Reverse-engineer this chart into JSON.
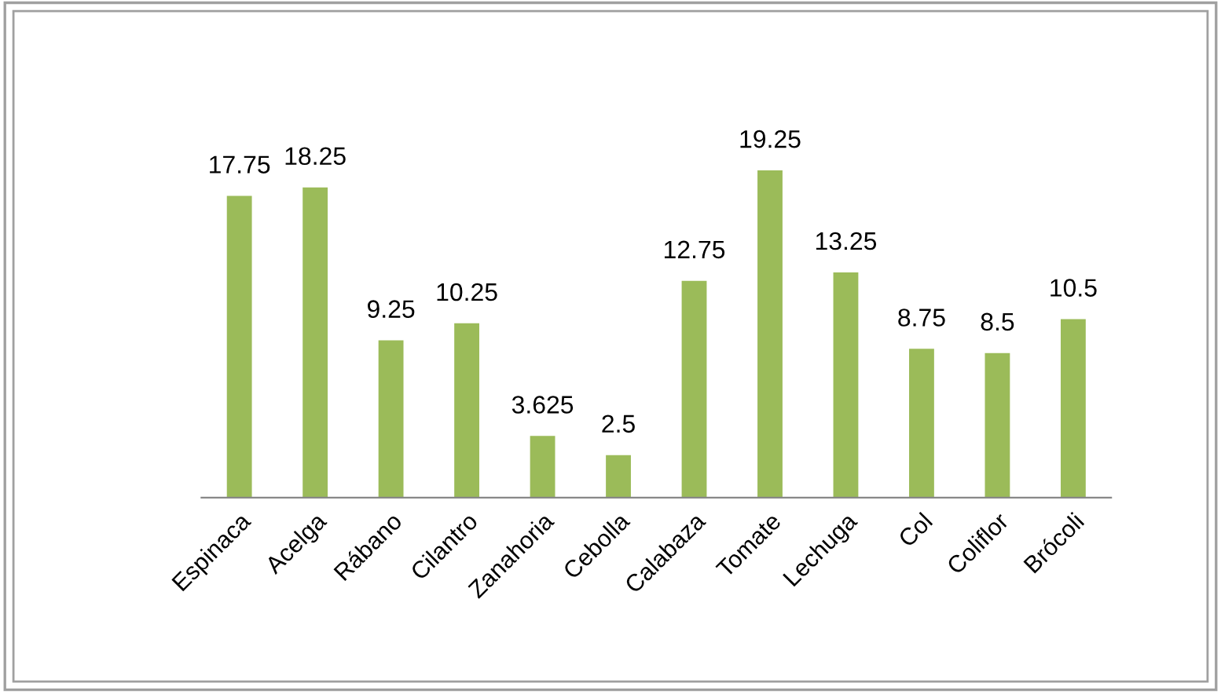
{
  "chart_data": {
    "type": "bar",
    "categories": [
      "Espinaca",
      "Acelga",
      "Rábano",
      "Cilantro",
      "Zanahoria",
      "Cebolla",
      "Calabaza",
      "Tomate",
      "Lechuga",
      "Col",
      "Coliflor",
      "Brócoli"
    ],
    "values": [
      17.75,
      18.25,
      9.25,
      10.25,
      3.625,
      2.5,
      12.75,
      19.25,
      13.25,
      8.75,
      8.5,
      10.5
    ],
    "color": "#9bbb59",
    "data_labels": true,
    "grid": false,
    "legend": false
  }
}
